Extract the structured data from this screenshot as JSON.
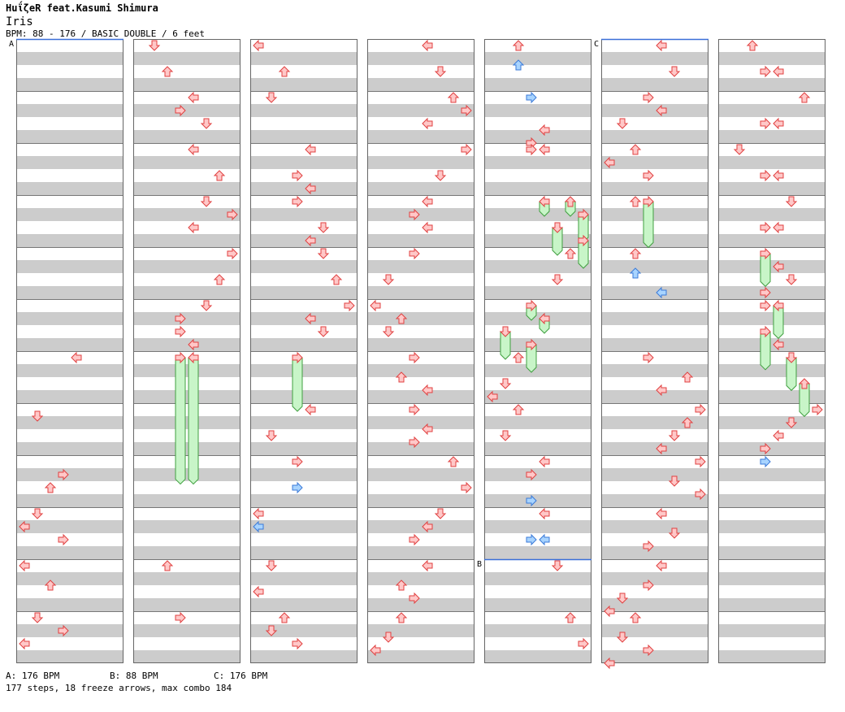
{
  "header": {
    "artist": "HuΐζeR feat.Kasumi Shimura",
    "title": "Iris",
    "info": "BPM: 88 - 176 / BASIC DOUBLE / 6 feet"
  },
  "footer": {
    "bpm_a": "A: 176 BPM",
    "bpm_b": "B: 88 BPM",
    "bpm_c": "C: 176 BPM",
    "stats": "177 steps, 18 freeze arrows, max combo 184"
  },
  "colors": {
    "tap": "#ffc8c8",
    "tap_stroke": "#e04040",
    "shock": "#a8d4ff",
    "shock_stroke": "#3a7ad8",
    "freeze": "#c8f5c8",
    "freeze_stroke": "#40a040",
    "stripe": "#cccccc",
    "marker": "#3a6fd8"
  },
  "chart_data": {
    "type": "step-chart",
    "lanes": 8,
    "measures_per_column": 12,
    "columns": 7,
    "segments": [
      {
        "label": "A",
        "column": 0,
        "measure": 0
      },
      {
        "label": "B",
        "column": 4,
        "measure": 10
      },
      {
        "label": "C",
        "column": 5,
        "measure": 0
      }
    ],
    "notes": [
      {
        "c": 0,
        "m": 6,
        "b": 0,
        "l": 4,
        "k": "tap"
      },
      {
        "c": 0,
        "m": 7,
        "b": 2,
        "l": 1,
        "k": "tap"
      },
      {
        "c": 0,
        "m": 8,
        "b": 4,
        "l": 3,
        "k": "tap"
      },
      {
        "c": 0,
        "m": 8,
        "b": 8,
        "l": 2,
        "k": "tap"
      },
      {
        "c": 0,
        "m": 9,
        "b": 0,
        "l": 1,
        "k": "tap"
      },
      {
        "c": 0,
        "m": 9,
        "b": 4,
        "l": 0,
        "k": "tap"
      },
      {
        "c": 0,
        "m": 9,
        "b": 8,
        "l": 3,
        "k": "tap"
      },
      {
        "c": 0,
        "m": 10,
        "b": 0,
        "l": 0,
        "k": "tap"
      },
      {
        "c": 0,
        "m": 10,
        "b": 6,
        "l": 2,
        "k": "tap"
      },
      {
        "c": 0,
        "m": 11,
        "b": 0,
        "l": 1,
        "k": "tap"
      },
      {
        "c": 0,
        "m": 11,
        "b": 4,
        "l": 3,
        "k": "tap"
      },
      {
        "c": 0,
        "m": 11,
        "b": 8,
        "l": 0,
        "k": "tap"
      },
      {
        "c": 1,
        "m": 0,
        "b": 0,
        "l": 1,
        "k": "tap"
      },
      {
        "c": 1,
        "m": 0,
        "b": 8,
        "l": 2,
        "k": "tap"
      },
      {
        "c": 1,
        "m": 1,
        "b": 0,
        "l": 4,
        "k": "tap"
      },
      {
        "c": 1,
        "m": 1,
        "b": 4,
        "l": 3,
        "k": "tap"
      },
      {
        "c": 1,
        "m": 1,
        "b": 8,
        "l": 5,
        "k": "tap"
      },
      {
        "c": 1,
        "m": 2,
        "b": 0,
        "l": 4,
        "k": "tap"
      },
      {
        "c": 1,
        "m": 2,
        "b": 8,
        "l": 6,
        "k": "tap"
      },
      {
        "c": 1,
        "m": 3,
        "b": 0,
        "l": 5,
        "k": "tap"
      },
      {
        "c": 1,
        "m": 3,
        "b": 4,
        "l": 7,
        "k": "tap"
      },
      {
        "c": 1,
        "m": 3,
        "b": 8,
        "l": 4,
        "k": "tap"
      },
      {
        "c": 1,
        "m": 4,
        "b": 0,
        "l": 7,
        "k": "tap"
      },
      {
        "c": 1,
        "m": 4,
        "b": 8,
        "l": 6,
        "k": "tap"
      },
      {
        "c": 1,
        "m": 5,
        "b": 0,
        "l": 5,
        "k": "tap"
      },
      {
        "c": 1,
        "m": 5,
        "b": 4,
        "l": 3,
        "k": "tap"
      },
      {
        "c": 1,
        "m": 5,
        "b": 8,
        "l": 3,
        "k": "tap"
      },
      {
        "c": 1,
        "m": 5,
        "b": 12,
        "l": 4,
        "k": "tap"
      },
      {
        "c": 1,
        "m": 6,
        "b": 0,
        "l": 3,
        "k": "freeze",
        "e": 8.4
      },
      {
        "c": 1,
        "m": 6,
        "b": 0,
        "l": 4,
        "k": "freeze",
        "e": 8.4
      },
      {
        "c": 1,
        "m": 10,
        "b": 0,
        "l": 2,
        "k": "tap"
      },
      {
        "c": 1,
        "m": 11,
        "b": 0,
        "l": 3,
        "k": "tap"
      },
      {
        "c": 2,
        "m": 0,
        "b": 0,
        "l": 0,
        "k": "tap"
      },
      {
        "c": 2,
        "m": 0,
        "b": 8,
        "l": 2,
        "k": "tap"
      },
      {
        "c": 2,
        "m": 1,
        "b": 0,
        "l": 1,
        "k": "tap"
      },
      {
        "c": 2,
        "m": 2,
        "b": 0,
        "l": 4,
        "k": "tap"
      },
      {
        "c": 2,
        "m": 2,
        "b": 8,
        "l": 3,
        "k": "tap"
      },
      {
        "c": 2,
        "m": 2,
        "b": 12,
        "l": 4,
        "k": "tap"
      },
      {
        "c": 2,
        "m": 3,
        "b": 0,
        "l": 3,
        "k": "tap"
      },
      {
        "c": 2,
        "m": 3,
        "b": 8,
        "l": 5,
        "k": "tap"
      },
      {
        "c": 2,
        "m": 3,
        "b": 12,
        "l": 4,
        "k": "tap"
      },
      {
        "c": 2,
        "m": 4,
        "b": 0,
        "l": 5,
        "k": "tap"
      },
      {
        "c": 2,
        "m": 4,
        "b": 8,
        "l": 6,
        "k": "tap"
      },
      {
        "c": 2,
        "m": 5,
        "b": 0,
        "l": 7,
        "k": "tap"
      },
      {
        "c": 2,
        "m": 5,
        "b": 4,
        "l": 4,
        "k": "tap"
      },
      {
        "c": 2,
        "m": 5,
        "b": 8,
        "l": 5,
        "k": "tap"
      },
      {
        "c": 2,
        "m": 6,
        "b": 0,
        "l": 3,
        "k": "freeze",
        "e": 7.0
      },
      {
        "c": 2,
        "m": 7,
        "b": 0,
        "l": 4,
        "k": "tap"
      },
      {
        "c": 2,
        "m": 7,
        "b": 8,
        "l": 1,
        "k": "tap"
      },
      {
        "c": 2,
        "m": 8,
        "b": 0,
        "l": 3,
        "k": "tap"
      },
      {
        "c": 2,
        "m": 8,
        "b": 8,
        "l": 3,
        "k": "shock"
      },
      {
        "c": 2,
        "m": 9,
        "b": 0,
        "l": 0,
        "k": "tap"
      },
      {
        "c": 2,
        "m": 9,
        "b": 4,
        "l": 0,
        "k": "shock"
      },
      {
        "c": 2,
        "m": 10,
        "b": 0,
        "l": 1,
        "k": "tap"
      },
      {
        "c": 2,
        "m": 10,
        "b": 8,
        "l": 0,
        "k": "tap"
      },
      {
        "c": 2,
        "m": 11,
        "b": 0,
        "l": 2,
        "k": "tap"
      },
      {
        "c": 2,
        "m": 11,
        "b": 4,
        "l": 1,
        "k": "tap"
      },
      {
        "c": 2,
        "m": 11,
        "b": 8,
        "l": 3,
        "k": "tap"
      },
      {
        "c": 3,
        "m": 0,
        "b": 0,
        "l": 4,
        "k": "tap"
      },
      {
        "c": 3,
        "m": 0,
        "b": 8,
        "l": 5,
        "k": "tap"
      },
      {
        "c": 3,
        "m": 1,
        "b": 0,
        "l": 6,
        "k": "tap"
      },
      {
        "c": 3,
        "m": 1,
        "b": 4,
        "l": 7,
        "k": "tap"
      },
      {
        "c": 3,
        "m": 1,
        "b": 8,
        "l": 4,
        "k": "tap"
      },
      {
        "c": 3,
        "m": 2,
        "b": 0,
        "l": 7,
        "k": "tap"
      },
      {
        "c": 3,
        "m": 2,
        "b": 8,
        "l": 5,
        "k": "tap"
      },
      {
        "c": 3,
        "m": 3,
        "b": 0,
        "l": 4,
        "k": "tap"
      },
      {
        "c": 3,
        "m": 3,
        "b": 4,
        "l": 3,
        "k": "tap"
      },
      {
        "c": 3,
        "m": 3,
        "b": 8,
        "l": 4,
        "k": "tap"
      },
      {
        "c": 3,
        "m": 4,
        "b": 0,
        "l": 3,
        "k": "tap"
      },
      {
        "c": 3,
        "m": 4,
        "b": 8,
        "l": 1,
        "k": "tap"
      },
      {
        "c": 3,
        "m": 5,
        "b": 0,
        "l": 0,
        "k": "tap"
      },
      {
        "c": 3,
        "m": 5,
        "b": 4,
        "l": 2,
        "k": "tap"
      },
      {
        "c": 3,
        "m": 5,
        "b": 8,
        "l": 1,
        "k": "tap"
      },
      {
        "c": 3,
        "m": 6,
        "b": 0,
        "l": 3,
        "k": "tap"
      },
      {
        "c": 3,
        "m": 6,
        "b": 6,
        "l": 2,
        "k": "tap"
      },
      {
        "c": 3,
        "m": 6,
        "b": 10,
        "l": 4,
        "k": "tap"
      },
      {
        "c": 3,
        "m": 7,
        "b": 0,
        "l": 3,
        "k": "tap"
      },
      {
        "c": 3,
        "m": 7,
        "b": 6,
        "l": 4,
        "k": "tap"
      },
      {
        "c": 3,
        "m": 7,
        "b": 10,
        "l": 3,
        "k": "tap"
      },
      {
        "c": 3,
        "m": 8,
        "b": 0,
        "l": 6,
        "k": "tap"
      },
      {
        "c": 3,
        "m": 8,
        "b": 8,
        "l": 7,
        "k": "tap"
      },
      {
        "c": 3,
        "m": 9,
        "b": 0,
        "l": 5,
        "k": "tap"
      },
      {
        "c": 3,
        "m": 9,
        "b": 4,
        "l": 4,
        "k": "tap"
      },
      {
        "c": 3,
        "m": 9,
        "b": 8,
        "l": 3,
        "k": "tap"
      },
      {
        "c": 3,
        "m": 10,
        "b": 0,
        "l": 4,
        "k": "tap"
      },
      {
        "c": 3,
        "m": 10,
        "b": 6,
        "l": 2,
        "k": "tap"
      },
      {
        "c": 3,
        "m": 10,
        "b": 10,
        "l": 3,
        "k": "tap"
      },
      {
        "c": 3,
        "m": 11,
        "b": 0,
        "l": 2,
        "k": "tap"
      },
      {
        "c": 3,
        "m": 11,
        "b": 6,
        "l": 1,
        "k": "tap"
      },
      {
        "c": 3,
        "m": 11,
        "b": 10,
        "l": 0,
        "k": "tap"
      },
      {
        "c": 4,
        "m": 0,
        "b": 0,
        "l": 2,
        "k": "tap"
      },
      {
        "c": 4,
        "m": 0,
        "b": 6,
        "l": 2,
        "k": "shock"
      },
      {
        "c": 4,
        "m": 1,
        "b": 0,
        "l": 3,
        "k": "shock"
      },
      {
        "c": 4,
        "m": 1,
        "b": 10,
        "l": 4,
        "k": "tap"
      },
      {
        "c": 4,
        "m": 1,
        "b": 14,
        "l": 3,
        "k": "tap"
      },
      {
        "c": 4,
        "m": 2,
        "b": 0,
        "l": 3,
        "k": "tap"
      },
      {
        "c": 4,
        "m": 2,
        "b": 0,
        "l": 4,
        "k": "tap"
      },
      {
        "c": 4,
        "m": 3,
        "b": 0,
        "l": 4,
        "k": "freeze",
        "e": 3.25
      },
      {
        "c": 4,
        "m": 3,
        "b": 0,
        "l": 6,
        "k": "freeze",
        "e": 3.25
      },
      {
        "c": 4,
        "m": 3,
        "b": 4,
        "l": 7,
        "k": "freeze",
        "e": 3.75
      },
      {
        "c": 4,
        "m": 3,
        "b": 8,
        "l": 5,
        "k": "freeze",
        "e": 4.0
      },
      {
        "c": 4,
        "m": 3,
        "b": 12,
        "l": 7,
        "k": "freeze",
        "e": 4.25
      },
      {
        "c": 4,
        "m": 4,
        "b": 0,
        "l": 6,
        "k": "tap"
      },
      {
        "c": 4,
        "m": 4,
        "b": 8,
        "l": 5,
        "k": "tap"
      },
      {
        "c": 4,
        "m": 5,
        "b": 0,
        "l": 3,
        "k": "freeze",
        "e": 5.25
      },
      {
        "c": 4,
        "m": 5,
        "b": 4,
        "l": 4,
        "k": "freeze",
        "e": 5.5
      },
      {
        "c": 4,
        "m": 5,
        "b": 8,
        "l": 1,
        "k": "freeze",
        "e": 6.0
      },
      {
        "c": 4,
        "m": 5,
        "b": 12,
        "l": 3,
        "k": "freeze",
        "e": 6.25
      },
      {
        "c": 4,
        "m": 6,
        "b": 0,
        "l": 2,
        "k": "tap"
      },
      {
        "c": 4,
        "m": 6,
        "b": 8,
        "l": 1,
        "k": "tap"
      },
      {
        "c": 4,
        "m": 6,
        "b": 12,
        "l": 0,
        "k": "tap"
      },
      {
        "c": 4,
        "m": 7,
        "b": 0,
        "l": 2,
        "k": "tap"
      },
      {
        "c": 4,
        "m": 7,
        "b": 8,
        "l": 1,
        "k": "tap"
      },
      {
        "c": 4,
        "m": 8,
        "b": 0,
        "l": 4,
        "k": "tap"
      },
      {
        "c": 4,
        "m": 8,
        "b": 4,
        "l": 3,
        "k": "tap"
      },
      {
        "c": 4,
        "m": 8,
        "b": 12,
        "l": 3,
        "k": "shock"
      },
      {
        "c": 4,
        "m": 9,
        "b": 0,
        "l": 4,
        "k": "tap"
      },
      {
        "c": 4,
        "m": 9,
        "b": 8,
        "l": 3,
        "k": "shock"
      },
      {
        "c": 4,
        "m": 9,
        "b": 8,
        "l": 4,
        "k": "shock"
      },
      {
        "c": 4,
        "m": 10,
        "b": 0,
        "l": 5,
        "k": "tap"
      },
      {
        "c": 4,
        "m": 11,
        "b": 0,
        "l": 6,
        "k": "tap"
      },
      {
        "c": 4,
        "m": 11,
        "b": 8,
        "l": 7,
        "k": "tap"
      },
      {
        "c": 5,
        "m": 0,
        "b": 0,
        "l": 4,
        "k": "tap"
      },
      {
        "c": 5,
        "m": 0,
        "b": 8,
        "l": 5,
        "k": "tap"
      },
      {
        "c": 5,
        "m": 1,
        "b": 0,
        "l": 3,
        "k": "tap"
      },
      {
        "c": 5,
        "m": 1,
        "b": 4,
        "l": 4,
        "k": "tap"
      },
      {
        "c": 5,
        "m": 1,
        "b": 8,
        "l": 1,
        "k": "tap"
      },
      {
        "c": 5,
        "m": 2,
        "b": 0,
        "l": 2,
        "k": "tap"
      },
      {
        "c": 5,
        "m": 2,
        "b": 4,
        "l": 0,
        "k": "tap"
      },
      {
        "c": 5,
        "m": 2,
        "b": 8,
        "l": 3,
        "k": "tap"
      },
      {
        "c": 5,
        "m": 3,
        "b": 0,
        "l": 2,
        "k": "tap"
      },
      {
        "c": 5,
        "m": 3,
        "b": 0,
        "l": 3,
        "k": "freeze",
        "e": 3.85
      },
      {
        "c": 5,
        "m": 4,
        "b": 0,
        "l": 2,
        "k": "tap"
      },
      {
        "c": 5,
        "m": 4,
        "b": 6,
        "l": 2,
        "k": "shock"
      },
      {
        "c": 5,
        "m": 4,
        "b": 12,
        "l": 4,
        "k": "shock"
      },
      {
        "c": 5,
        "m": 6,
        "b": 0,
        "l": 3,
        "k": "tap"
      },
      {
        "c": 5,
        "m": 6,
        "b": 6,
        "l": 6,
        "k": "tap"
      },
      {
        "c": 5,
        "m": 6,
        "b": 10,
        "l": 4,
        "k": "tap"
      },
      {
        "c": 5,
        "m": 7,
        "b": 0,
        "l": 7,
        "k": "tap"
      },
      {
        "c": 5,
        "m": 7,
        "b": 4,
        "l": 6,
        "k": "tap"
      },
      {
        "c": 5,
        "m": 7,
        "b": 8,
        "l": 5,
        "k": "tap"
      },
      {
        "c": 5,
        "m": 7,
        "b": 12,
        "l": 4,
        "k": "tap"
      },
      {
        "c": 5,
        "m": 8,
        "b": 0,
        "l": 7,
        "k": "tap"
      },
      {
        "c": 5,
        "m": 8,
        "b": 6,
        "l": 5,
        "k": "tap"
      },
      {
        "c": 5,
        "m": 8,
        "b": 10,
        "l": 7,
        "k": "tap"
      },
      {
        "c": 5,
        "m": 9,
        "b": 0,
        "l": 4,
        "k": "tap"
      },
      {
        "c": 5,
        "m": 9,
        "b": 6,
        "l": 5,
        "k": "tap"
      },
      {
        "c": 5,
        "m": 9,
        "b": 10,
        "l": 3,
        "k": "tap"
      },
      {
        "c": 5,
        "m": 10,
        "b": 0,
        "l": 4,
        "k": "tap"
      },
      {
        "c": 5,
        "m": 10,
        "b": 6,
        "l": 3,
        "k": "tap"
      },
      {
        "c": 5,
        "m": 10,
        "b": 10,
        "l": 1,
        "k": "tap"
      },
      {
        "c": 5,
        "m": 10,
        "b": 14,
        "l": 0,
        "k": "tap"
      },
      {
        "c": 5,
        "m": 11,
        "b": 0,
        "l": 2,
        "k": "tap"
      },
      {
        "c": 5,
        "m": 11,
        "b": 6,
        "l": 1,
        "k": "tap"
      },
      {
        "c": 5,
        "m": 11,
        "b": 10,
        "l": 3,
        "k": "tap"
      },
      {
        "c": 5,
        "m": 11,
        "b": 14,
        "l": 0,
        "k": "tap"
      },
      {
        "c": 6,
        "m": 0,
        "b": 0,
        "l": 2,
        "k": "tap"
      },
      {
        "c": 6,
        "m": 0,
        "b": 8,
        "l": 3,
        "k": "tap"
      },
      {
        "c": 6,
        "m": 0,
        "b": 8,
        "l": 4,
        "k": "tap"
      },
      {
        "c": 6,
        "m": 1,
        "b": 0,
        "l": 6,
        "k": "tap"
      },
      {
        "c": 6,
        "m": 1,
        "b": 8,
        "l": 3,
        "k": "tap"
      },
      {
        "c": 6,
        "m": 1,
        "b": 8,
        "l": 4,
        "k": "tap"
      },
      {
        "c": 6,
        "m": 2,
        "b": 0,
        "l": 1,
        "k": "tap"
      },
      {
        "c": 6,
        "m": 2,
        "b": 8,
        "l": 3,
        "k": "tap"
      },
      {
        "c": 6,
        "m": 2,
        "b": 8,
        "l": 4,
        "k": "tap"
      },
      {
        "c": 6,
        "m": 3,
        "b": 0,
        "l": 5,
        "k": "tap"
      },
      {
        "c": 6,
        "m": 3,
        "b": 8,
        "l": 3,
        "k": "tap"
      },
      {
        "c": 6,
        "m": 3,
        "b": 8,
        "l": 4,
        "k": "tap"
      },
      {
        "c": 6,
        "m": 4,
        "b": 0,
        "l": 3,
        "k": "freeze",
        "e": 4.6
      },
      {
        "c": 6,
        "m": 4,
        "b": 4,
        "l": 4,
        "k": "tap"
      },
      {
        "c": 6,
        "m": 4,
        "b": 8,
        "l": 5,
        "k": "tap"
      },
      {
        "c": 6,
        "m": 4,
        "b": 12,
        "l": 3,
        "k": "tap"
      },
      {
        "c": 6,
        "m": 5,
        "b": 0,
        "l": 3,
        "k": "tap"
      },
      {
        "c": 6,
        "m": 5,
        "b": 0,
        "l": 4,
        "k": "freeze",
        "e": 5.6
      },
      {
        "c": 6,
        "m": 5,
        "b": 8,
        "l": 3,
        "k": "freeze",
        "e": 6.2
      },
      {
        "c": 6,
        "m": 5,
        "b": 12,
        "l": 4,
        "k": "tap"
      },
      {
        "c": 6,
        "m": 6,
        "b": 0,
        "l": 5,
        "k": "freeze",
        "e": 6.6
      },
      {
        "c": 6,
        "m": 6,
        "b": 8,
        "l": 6,
        "k": "freeze",
        "e": 7.1
      },
      {
        "c": 6,
        "m": 7,
        "b": 0,
        "l": 7,
        "k": "tap"
      },
      {
        "c": 6,
        "m": 7,
        "b": 4,
        "l": 5,
        "k": "tap"
      },
      {
        "c": 6,
        "m": 7,
        "b": 8,
        "l": 4,
        "k": "tap"
      },
      {
        "c": 6,
        "m": 7,
        "b": 12,
        "l": 3,
        "k": "tap"
      },
      {
        "c": 6,
        "m": 8,
        "b": 0,
        "l": 3,
        "k": "shock"
      }
    ]
  }
}
